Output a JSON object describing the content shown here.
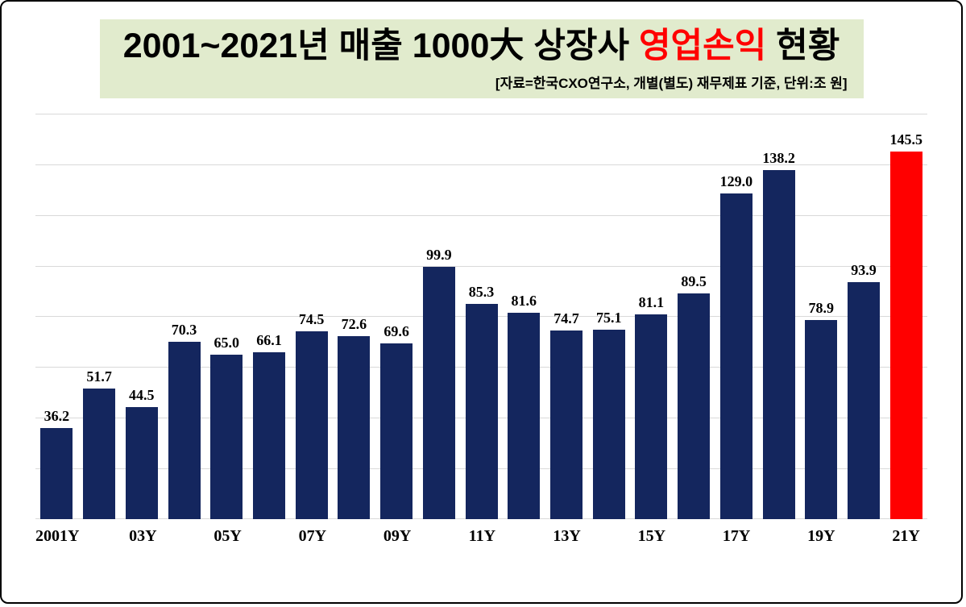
{
  "title": {
    "prefix": "2001~2021년 매출 1000大 상장사 ",
    "highlight": "영업손익",
    "suffix": " 현황",
    "source_note": "[자료=한국CXO연구소, 개별(별도) 재무제표 기준, 단위:조 원]"
  },
  "colors": {
    "bar": "#14265e",
    "highlight_bar": "#ff0000",
    "title_bg": "#e1ebcd",
    "title_highlight": "#ff0000",
    "gridline": "#d9d9d9"
  },
  "chart_data": {
    "type": "bar",
    "title": "2001~2021년 매출 1000大 상장사 영업손익 현황",
    "source_note": "[자료=한국CXO연구소, 개별(별도) 재무제표 기준, 단위:조 원]",
    "unit": "조 원",
    "tick_labels": [
      "2001Y",
      "",
      "03Y",
      "",
      "05Y",
      "",
      "07Y",
      "",
      "09Y",
      "",
      "11Y",
      "",
      "13Y",
      "",
      "15Y",
      "",
      "17Y",
      "",
      "19Y",
      "",
      "21Y"
    ],
    "values": [
      36.2,
      51.7,
      44.5,
      70.3,
      65.0,
      66.1,
      74.5,
      72.6,
      69.6,
      99.9,
      85.3,
      81.6,
      74.7,
      75.1,
      81.1,
      89.5,
      129.0,
      138.2,
      78.9,
      93.9,
      145.5
    ],
    "highlight_index": 20,
    "ylim": [
      0,
      160
    ],
    "grid_step": 20,
    "grid_on": true,
    "legend": "none"
  }
}
